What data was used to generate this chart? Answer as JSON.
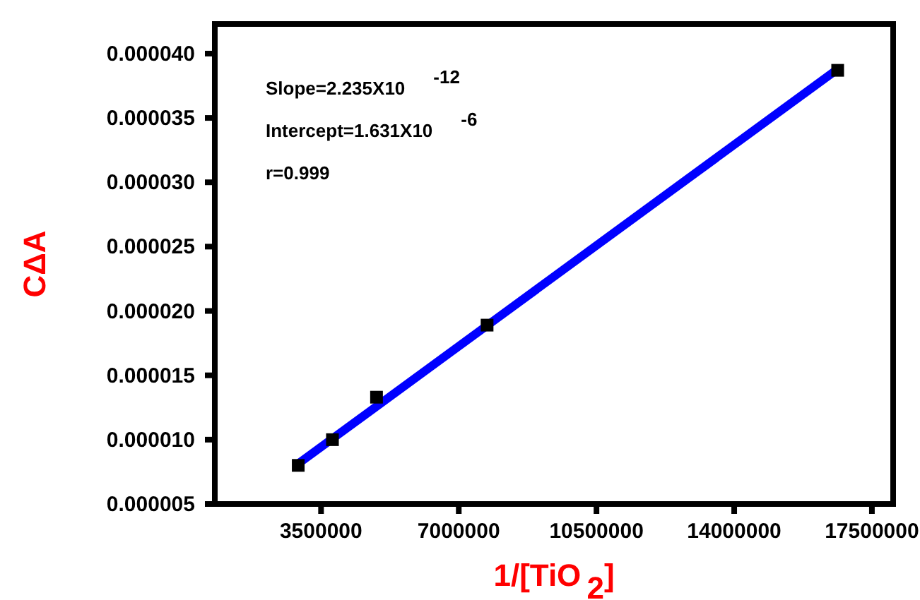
{
  "chart_data": {
    "type": "scatter",
    "xlabel": "1/[TiO$_{2}$]",
    "ylabel": "CΔA",
    "xlim": [
      800000,
      18040000
    ],
    "ylim": [
      5e-06,
      4.23e-05
    ],
    "xticks": [
      3500000,
      7000000,
      10500000,
      14000000,
      17500000
    ],
    "yticks": [
      {
        "value": 5e-06,
        "label": "0.000005"
      },
      {
        "value": 1e-05,
        "label": "0.000010"
      },
      {
        "value": 1.5e-05,
        "label": "0.000015"
      },
      {
        "value": 2e-05,
        "label": "0.000020"
      },
      {
        "value": 2.5e-05,
        "label": "0.000025"
      },
      {
        "value": 3e-05,
        "label": "0.000030"
      },
      {
        "value": 3.5e-05,
        "label": "0.000035"
      },
      {
        "value": 4e-05,
        "label": "0.000040"
      }
    ],
    "grid": false,
    "series": [
      {
        "color": "#000000",
        "marker": "square",
        "x": [
          2920000,
          3790000,
          4910000,
          7720000,
          16630000
        ],
        "values": [
          8e-06,
          1e-05,
          1.33e-05,
          1.89e-05,
          3.87e-05
        ]
      },
      {
        "type": "line",
        "color": "#0000ff",
        "marker": "none",
        "line_style": "solid",
        "x": [
          2950000,
          16630000
        ],
        "values": [
          8.2e-06,
          3.88e-05
        ]
      }
    ],
    "annotations": [
      "Slope=2.235X10$^{-12}$",
      "Intercept=1.631X10$^{-6}$",
      "r=0.999"
    ]
  }
}
